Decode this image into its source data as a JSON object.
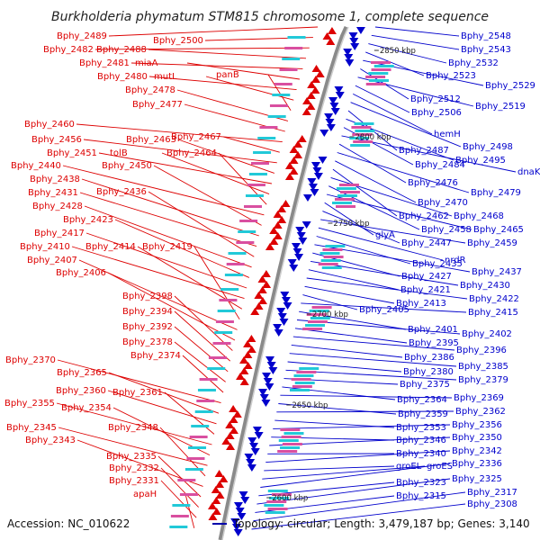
{
  "title": "Burkholderia phymatum STM815 chromosome 1, complete sequence",
  "footer": {
    "accession": "Accession: NC_010622",
    "topology": "Topology: circular; Length: 3,479,187 bp; Genes: 3,140"
  },
  "colors": {
    "forward": "#dd0000",
    "reverse": "#0000cc",
    "backbone": "#8a8a8a"
  },
  "ticks": [
    "2850 kbp",
    "2800 kbp",
    "2750 kbp",
    "2700 kbp",
    "2650 kbp",
    "2600 kbp"
  ],
  "left_labels": [
    "Bphy_2489",
    "Bphy_2500",
    "Bphy_2482",
    "Bphy_2488",
    "Bphy_2481",
    "miaA",
    "Bphy_2480",
    "mutL",
    "panB",
    "Bphy_2478",
    "Bphy_2477",
    "Bphy_2460",
    "Bphy_2467",
    "Bphy_2456",
    "Bphy_2463",
    "Bphy_2451",
    "tolB",
    "Bphy_2464",
    "Bphy_2440",
    "Bphy_2450",
    "Bphy_2438",
    "Bphy_2431",
    "Bphy_2436",
    "Bphy_2428",
    "Bphy_2423",
    "Bphy_2417",
    "Bphy_2410",
    "Bphy_2414",
    "Bphy_2419",
    "Bphy_2407",
    "Bphy_2406",
    "Bphy_2398",
    "Bphy_2394",
    "Bphy_2392",
    "Bphy_2378",
    "Bphy_2374",
    "Bphy_2370",
    "Bphy_2365",
    "Bphy_2360",
    "Bphy_2361",
    "Bphy_2355",
    "Bphy_2354",
    "Bphy_2345",
    "Bphy_2348",
    "Bphy_2343",
    "Bphy_2335",
    "Bphy_2332",
    "Bphy_2331",
    "apaH"
  ],
  "right_labels": [
    "Bphy_2548",
    "Bphy_2543",
    "Bphy_2532",
    "Bphy_2523",
    "Bphy_2529",
    "Bphy_2512",
    "Bphy_2519",
    "Bphy_2506",
    "hemH",
    "Bphy_2498",
    "Bphy_2487",
    "Bphy_2495",
    "Bphy_2484",
    "dnaK",
    "Bphy_2476",
    "Bphy_2479",
    "Bphy_2470",
    "Bphy_2462",
    "Bphy_2468",
    "Bphy_2458",
    "Bphy_2465",
    "glyA",
    "Bphy_2447",
    "Bphy_2459",
    "nrdR",
    "Bphy_2435",
    "Bphy_2437",
    "Bphy_2427",
    "Bphy_2430",
    "Bphy_2421",
    "Bphy_2422",
    "Bphy_2413",
    "Bphy_2405",
    "Bphy_2415",
    "Bphy_2401",
    "Bphy_2402",
    "Bphy_2395",
    "Bphy_2396",
    "Bphy_2386",
    "Bphy_2385",
    "Bphy_2380",
    "Bphy_2379",
    "Bphy_2375",
    "Bphy_2364",
    "Bphy_2369",
    "Bphy_2359",
    "Bphy_2362",
    "Bphy_2353",
    "Bphy_2356",
    "Bphy_2346",
    "Bphy_2350",
    "Bphy_2340",
    "Bphy_2342",
    "groEL",
    "groES",
    "Bphy_2336",
    "Bphy_2323",
    "Bphy_2325",
    "Bphy_2315",
    "Bphy_2317",
    "Bphy_2308"
  ]
}
